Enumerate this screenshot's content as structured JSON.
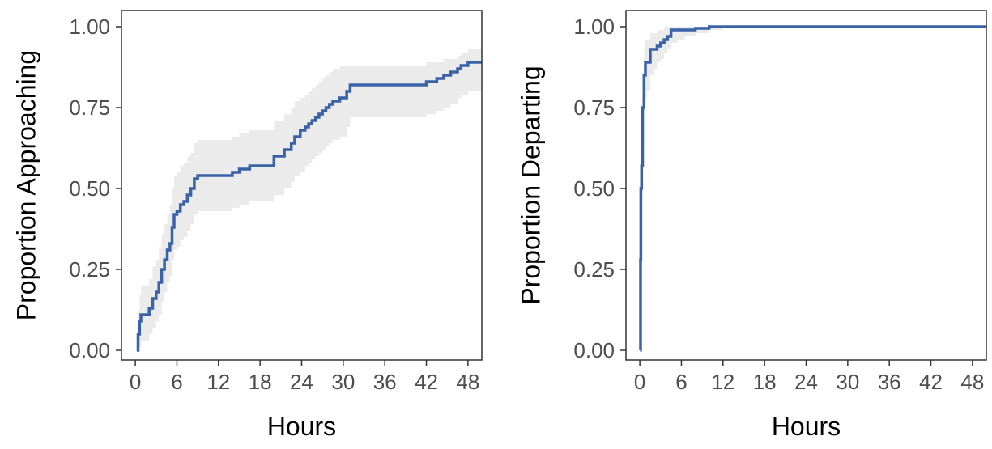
{
  "chart_data": [
    {
      "type": "step",
      "xlabel": "Hours",
      "ylabel": "Proportion Approaching",
      "xlim": [
        -2,
        50
      ],
      "ylim": [
        -0.03,
        1.05
      ],
      "xticks": [
        0,
        6,
        12,
        18,
        24,
        30,
        36,
        42,
        48
      ],
      "yticks": [
        0.0,
        0.25,
        0.5,
        0.75,
        1.0
      ],
      "ytick_labels": [
        "0.00",
        "0.25",
        "0.50",
        "0.75",
        "1.00"
      ],
      "grid": false,
      "line_color": "#3a62a6",
      "band_color": "#ebebeb",
      "series": [
        {
          "x": [
            0.2,
            0.4,
            0.6,
            0.8,
            1.2,
            2.0,
            2.5,
            3.0,
            3.4,
            3.8,
            4.2,
            4.6,
            5.0,
            5.3,
            5.6,
            6.0,
            6.5,
            7.0,
            7.5,
            8.0,
            8.5,
            9.0,
            14.0,
            15.0,
            16.5,
            20.0,
            21.5,
            22.5,
            23.0,
            23.8,
            24.5,
            25.0,
            25.5,
            26.0,
            26.5,
            27.0,
            27.5,
            28.0,
            28.5,
            29.5,
            30.5,
            31.0,
            42.0,
            43.5,
            44.5,
            45.5,
            46.5,
            47.0,
            48.0,
            50.0
          ],
          "y": [
            0.0,
            0.05,
            0.09,
            0.11,
            0.11,
            0.13,
            0.16,
            0.18,
            0.21,
            0.25,
            0.28,
            0.31,
            0.33,
            0.38,
            0.42,
            0.43,
            0.45,
            0.46,
            0.48,
            0.5,
            0.53,
            0.54,
            0.55,
            0.56,
            0.57,
            0.6,
            0.62,
            0.64,
            0.66,
            0.68,
            0.69,
            0.7,
            0.71,
            0.72,
            0.73,
            0.74,
            0.75,
            0.76,
            0.77,
            0.78,
            0.8,
            0.82,
            0.83,
            0.84,
            0.85,
            0.86,
            0.87,
            0.88,
            0.89,
            0.89
          ],
          "lower": [
            0.0,
            0.0,
            0.01,
            0.03,
            0.03,
            0.05,
            0.07,
            0.09,
            0.11,
            0.15,
            0.18,
            0.21,
            0.23,
            0.28,
            0.31,
            0.32,
            0.34,
            0.35,
            0.37,
            0.39,
            0.42,
            0.43,
            0.44,
            0.45,
            0.46,
            0.48,
            0.5,
            0.52,
            0.54,
            0.55,
            0.57,
            0.58,
            0.59,
            0.6,
            0.61,
            0.62,
            0.63,
            0.64,
            0.65,
            0.66,
            0.69,
            0.72,
            0.73,
            0.74,
            0.75,
            0.76,
            0.78,
            0.79,
            0.8,
            0.8
          ],
          "upper": [
            0.0,
            0.12,
            0.17,
            0.2,
            0.2,
            0.22,
            0.26,
            0.28,
            0.32,
            0.36,
            0.39,
            0.42,
            0.45,
            0.5,
            0.54,
            0.55,
            0.57,
            0.58,
            0.6,
            0.61,
            0.64,
            0.65,
            0.66,
            0.67,
            0.68,
            0.71,
            0.73,
            0.75,
            0.77,
            0.78,
            0.79,
            0.8,
            0.81,
            0.82,
            0.83,
            0.84,
            0.85,
            0.86,
            0.87,
            0.88,
            0.88,
            0.88,
            0.89,
            0.89,
            0.9,
            0.9,
            0.91,
            0.92,
            0.93,
            0.93
          ]
        }
      ]
    },
    {
      "type": "step",
      "xlabel": "Hours",
      "ylabel": "Proportion Departing",
      "xlim": [
        -2,
        50
      ],
      "ylim": [
        -0.03,
        1.05
      ],
      "xticks": [
        0,
        6,
        12,
        18,
        24,
        30,
        36,
        42,
        48
      ],
      "yticks": [
        0.0,
        0.25,
        0.5,
        0.75,
        1.0
      ],
      "ytick_labels": [
        "0.00",
        "0.25",
        "0.50",
        "0.75",
        "1.00"
      ],
      "grid": false,
      "line_color": "#3a62a6",
      "band_color": "#ebebeb",
      "series": [
        {
          "x": [
            0.05,
            0.1,
            0.15,
            0.25,
            0.4,
            0.6,
            0.8,
            1.0,
            1.5,
            2.0,
            2.5,
            3.0,
            3.5,
            4.0,
            4.5,
            5.5,
            6.5,
            8.0,
            10.0,
            12.0,
            18.0,
            50.0
          ],
          "y": [
            0.0,
            0.28,
            0.5,
            0.57,
            0.75,
            0.85,
            0.89,
            0.89,
            0.93,
            0.93,
            0.94,
            0.95,
            0.96,
            0.97,
            0.99,
            0.99,
            0.99,
            0.995,
            1.0,
            1.0,
            1.0,
            1.0
          ],
          "lower": [
            0.0,
            0.18,
            0.38,
            0.46,
            0.64,
            0.74,
            0.78,
            0.8,
            0.85,
            0.87,
            0.89,
            0.9,
            0.92,
            0.93,
            0.95,
            0.96,
            0.97,
            0.98,
            0.99,
            0.995,
            1.0,
            1.0
          ],
          "upper": [
            0.0,
            0.4,
            0.62,
            0.7,
            0.86,
            0.93,
            0.96,
            0.96,
            0.98,
            0.98,
            0.99,
            0.99,
            1.0,
            1.0,
            1.0,
            1.0,
            1.0,
            1.0,
            1.0,
            1.0,
            1.0,
            1.0
          ]
        }
      ]
    }
  ]
}
